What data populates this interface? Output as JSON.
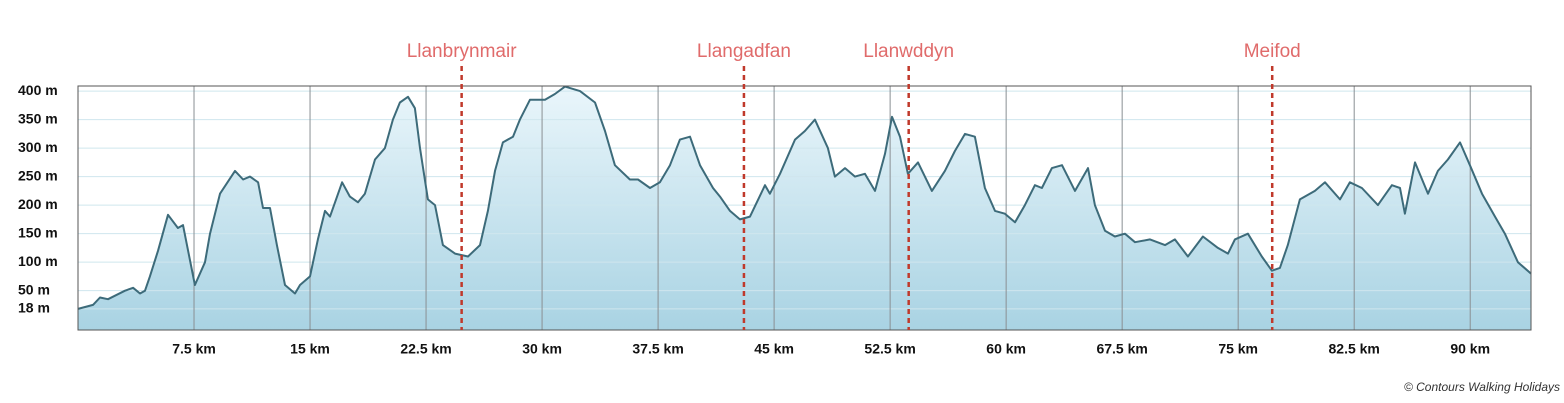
{
  "chart_data": {
    "type": "area",
    "x": [
      0,
      0.97,
      1.42,
      1.94,
      3.04,
      3.56,
      4.01,
      4.33,
      4.65,
      5.17,
      5.82,
      6.46,
      6.79,
      7.56,
      8.21,
      8.53,
      9.18,
      10.15,
      10.67,
      11.12,
      11.64,
      11.96,
      12.41,
      12.86,
      13.38,
      14.03,
      14.35,
      15.0,
      15.51,
      15.97,
      16.29,
      17.07,
      17.58,
      18.1,
      18.55,
      19.2,
      19.84,
      20.36,
      20.81,
      21.33,
      21.78,
      22.11,
      22.62,
      23.08,
      23.59,
      24.37,
      25.21,
      25.99,
      26.5,
      26.96,
      27.47,
      28.12,
      28.57,
      29.22,
      30.19,
      30.83,
      31.48,
      32.45,
      33.42,
      34.07,
      34.71,
      35.68,
      36.2,
      36.98,
      37.62,
      38.27,
      38.91,
      39.56,
      40.21,
      41.05,
      41.5,
      42.15,
      42.79,
      43.44,
      44.41,
      44.73,
      45.38,
      46.35,
      46.99,
      47.64,
      48.48,
      48.93,
      49.58,
      50.23,
      50.87,
      51.52,
      52.17,
      52.62,
      53.14,
      53.65,
      54.3,
      55.2,
      56.04,
      56.69,
      57.34,
      57.98,
      58.63,
      59.28,
      59.92,
      60.57,
      61.21,
      61.86,
      62.31,
      62.96,
      63.61,
      64.45,
      65.29,
      65.74,
      66.39,
      67.03,
      67.68,
      68.33,
      69.3,
      70.27,
      70.91,
      71.75,
      72.72,
      73.69,
      74.34,
      74.79,
      75.63,
      76.53,
      77.18,
      77.7,
      78.21,
      78.99,
      79.96,
      80.61,
      81.58,
      82.22,
      83.0,
      84.03,
      84.94,
      85.46,
      85.78,
      86.43,
      87.27,
      87.91,
      88.56,
      89.34,
      89.98,
      90.76,
      91.6,
      92.24,
      93.08,
      93.93
    ],
    "values": [
      18,
      25,
      38,
      35,
      50,
      55,
      45,
      50,
      75,
      120,
      183,
      160,
      165,
      60,
      100,
      150,
      220,
      260,
      245,
      250,
      240,
      195,
      195,
      130,
      60,
      45,
      60,
      75,
      140,
      190,
      180,
      240,
      215,
      205,
      220,
      280,
      300,
      350,
      380,
      390,
      370,
      300,
      210,
      200,
      130,
      115,
      110,
      130,
      190,
      260,
      310,
      320,
      350,
      385,
      385,
      395,
      408,
      400,
      380,
      330,
      270,
      245,
      245,
      230,
      240,
      270,
      315,
      320,
      270,
      230,
      215,
      190,
      175,
      180,
      235,
      220,
      255,
      315,
      330,
      350,
      300,
      250,
      265,
      250,
      255,
      225,
      290,
      355,
      320,
      255,
      275,
      225,
      260,
      295,
      325,
      320,
      230,
      190,
      185,
      170,
      200,
      235,
      230,
      265,
      270,
      225,
      265,
      200,
      155,
      145,
      150,
      135,
      140,
      130,
      140,
      110,
      145,
      125,
      115,
      140,
      150,
      110,
      85,
      90,
      130,
      210,
      225,
      240,
      210,
      240,
      230,
      200,
      235,
      230,
      185,
      275,
      220,
      260,
      280,
      310,
      270,
      220,
      180,
      150,
      100,
      80
    ],
    "color": "#3d6b7a",
    "xlim": [
      0,
      93.93
    ],
    "ylim": [
      -19,
      409
    ],
    "xticks": [
      {
        "value": 7.5,
        "label": "7.5 km"
      },
      {
        "value": 15,
        "label": "15 km"
      },
      {
        "value": 22.5,
        "label": "22.5 km"
      },
      {
        "value": 30,
        "label": "30 km"
      },
      {
        "value": 37.5,
        "label": "37.5 km"
      },
      {
        "value": 45,
        "label": "45 km"
      },
      {
        "value": 52.5,
        "label": "52.5 km"
      },
      {
        "value": 60,
        "label": "60 km"
      },
      {
        "value": 67.5,
        "label": "67.5 km"
      },
      {
        "value": 75,
        "label": "75 km"
      },
      {
        "value": 82.5,
        "label": "82.5 km"
      },
      {
        "value": 90,
        "label": "90 km"
      }
    ],
    "yticks": [
      {
        "value": 18,
        "label": "18 m"
      },
      {
        "value": 50,
        "label": "50 m"
      },
      {
        "value": 100,
        "label": "100 m"
      },
      {
        "value": 150,
        "label": "150 m"
      },
      {
        "value": 200,
        "label": "200 m"
      },
      {
        "value": 250,
        "label": "250 m"
      },
      {
        "value": 300,
        "label": "300 m"
      },
      {
        "value": 350,
        "label": "350 m"
      },
      {
        "value": 400,
        "label": "400 m"
      }
    ],
    "grid": true,
    "markers": [
      {
        "label": "Llanbrynmair",
        "x": 24.8
      },
      {
        "label": "Llangadfan",
        "x": 43.05
      },
      {
        "label": "Llanwddyn",
        "x": 53.7
      },
      {
        "label": "Meifod",
        "x": 77.2
      }
    ],
    "credit": "© Contours Walking Holidays"
  }
}
